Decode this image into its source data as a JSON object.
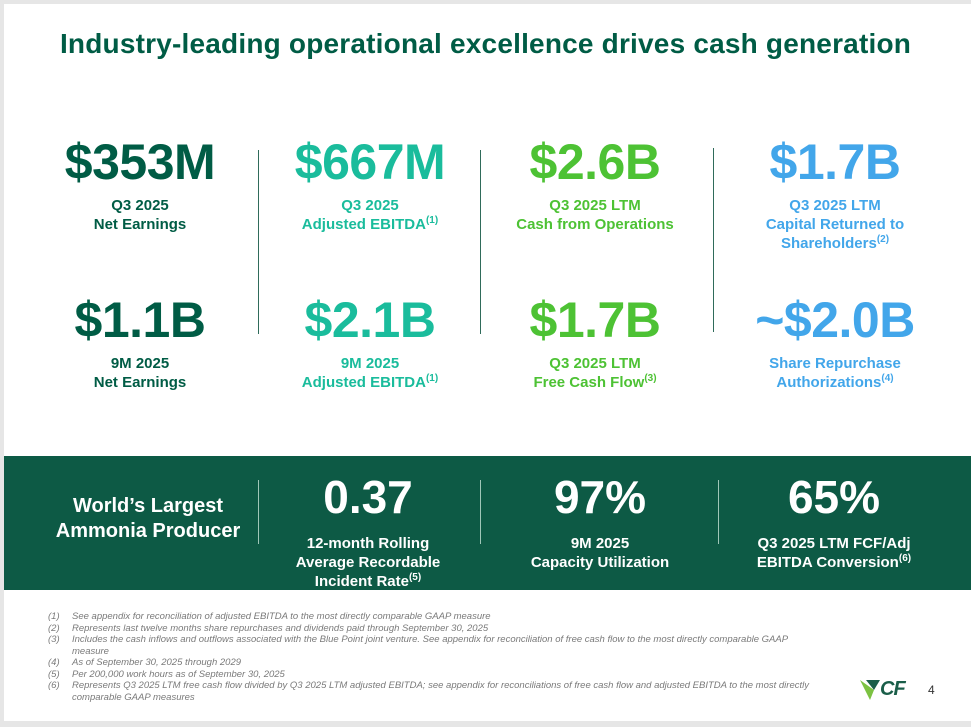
{
  "title": "Industry-leading operational excellence drives cash generation",
  "colors": {
    "dark_green": "#005c45",
    "teal": "#1abc9c",
    "green": "#4dc234",
    "blue": "#42a6ea",
    "band": "#0d5a45"
  },
  "metrics": [
    {
      "value": "$353M",
      "line1": "Q3 2025",
      "line2": "Net Earnings",
      "sup": ""
    },
    {
      "value": "$667M",
      "line1": "Q3 2025",
      "line2": "Adjusted EBITDA",
      "sup": "(1)"
    },
    {
      "value": "$2.6B",
      "line1": "Q3 2025 LTM",
      "line2": "Cash from Operations",
      "sup": ""
    },
    {
      "value": "$1.7B",
      "line1": "Q3 2025 LTM",
      "line2": "Capital Returned to",
      "line3": "Shareholders",
      "sup": "(2)"
    },
    {
      "value": "$1.1B",
      "line1": "9M 2025",
      "line2": "Net Earnings",
      "sup": ""
    },
    {
      "value": "$2.1B",
      "line1": "9M 2025",
      "line2": "Adjusted EBITDA",
      "sup": "(1)"
    },
    {
      "value": "$1.7B",
      "line1": "Q3 2025 LTM",
      "line2": "Free Cash Flow",
      "sup": "(3)"
    },
    {
      "value": "~$2.0B",
      "line1": "Share Repurchase",
      "line2": "Authorizations",
      "sup": "(4)"
    }
  ],
  "band": {
    "tagline_line1": "World’s Largest",
    "tagline_line2": "Ammonia Producer",
    "stats": [
      {
        "value": "0.37",
        "line1": "12-month Rolling",
        "line2": "Average Recordable",
        "line3": "Incident Rate",
        "sup": "(5)"
      },
      {
        "value": "97%",
        "line1": "9M 2025",
        "line2": "Capacity Utilization",
        "sup": ""
      },
      {
        "value": "65%",
        "line1": "Q3 2025 LTM FCF/Adj",
        "line2": "EBITDA Conversion",
        "sup": "(6)"
      }
    ]
  },
  "footnotes": [
    {
      "num": "(1)",
      "text": "See appendix for reconciliation of adjusted EBITDA to the most directly comparable GAAP measure"
    },
    {
      "num": "(2)",
      "text": "Represents last twelve months share repurchases and dividends paid through September 30, 2025"
    },
    {
      "num": "(3)",
      "text": "Includes the cash inflows and outflows associated with the Blue Point joint venture. See appendix for reconciliation of free cash flow to the most directly comparable GAAP measure"
    },
    {
      "num": "(4)",
      "text": "As of September 30, 2025 through 2029"
    },
    {
      "num": "(5)",
      "text": "Per 200,000 work hours as of  September 30, 2025"
    },
    {
      "num": "(6)",
      "text": "Represents Q3 2025 LTM free cash flow divided by Q3 2025 LTM adjusted EBITDA; see appendix for reconciliations of free cash flow and adjusted EBITDA to the most directly comparable GAAP measures"
    }
  ],
  "logo": {
    "text": "CF"
  },
  "page_number": "4"
}
